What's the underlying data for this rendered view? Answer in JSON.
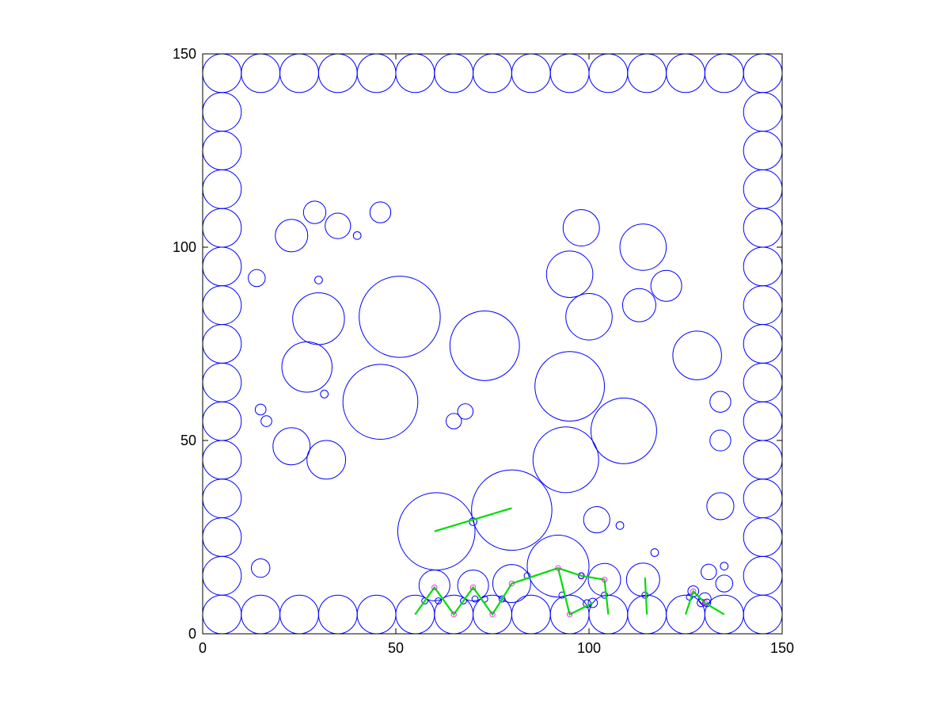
{
  "chart_data": {
    "type": "scatter",
    "title": "",
    "xlabel": "",
    "ylabel": "",
    "xlim": [
      0,
      150
    ],
    "ylim": [
      0,
      150
    ],
    "grid": false,
    "aspect": "equal",
    "xticks": [
      0,
      50,
      100,
      150
    ],
    "yticks": [
      0,
      50,
      100,
      150
    ],
    "colors": {
      "circle": "#0000ff",
      "path": "#00dd00",
      "contact": "#ff00ff",
      "axis": "#000000"
    },
    "circles": [
      [
        5,
        145,
        5
      ],
      [
        15,
        145,
        5
      ],
      [
        25,
        145,
        5
      ],
      [
        35,
        145,
        5
      ],
      [
        45,
        145,
        5
      ],
      [
        55,
        145,
        5
      ],
      [
        65,
        145,
        5
      ],
      [
        75,
        145,
        5
      ],
      [
        85,
        145,
        5
      ],
      [
        95,
        145,
        5
      ],
      [
        105,
        145,
        5
      ],
      [
        115,
        145,
        5
      ],
      [
        125,
        145,
        5
      ],
      [
        135,
        145,
        5
      ],
      [
        145,
        145,
        5
      ],
      [
        5,
        5,
        5
      ],
      [
        15,
        5,
        5
      ],
      [
        25,
        5,
        5
      ],
      [
        35,
        5,
        5
      ],
      [
        45,
        5,
        5
      ],
      [
        55,
        5,
        5
      ],
      [
        65,
        5,
        5
      ],
      [
        75,
        5,
        5
      ],
      [
        85,
        5,
        5
      ],
      [
        95,
        5,
        5
      ],
      [
        105,
        5,
        5
      ],
      [
        115,
        5,
        5
      ],
      [
        125,
        5,
        5
      ],
      [
        135,
        5,
        5
      ],
      [
        145,
        5,
        5
      ],
      [
        5,
        15,
        5
      ],
      [
        5,
        25,
        5
      ],
      [
        5,
        35,
        5
      ],
      [
        5,
        45,
        5
      ],
      [
        5,
        55,
        5
      ],
      [
        5,
        65,
        5
      ],
      [
        5,
        75,
        5
      ],
      [
        5,
        85,
        5
      ],
      [
        5,
        95,
        5
      ],
      [
        5,
        105,
        5
      ],
      [
        5,
        115,
        5
      ],
      [
        5,
        125,
        5
      ],
      [
        5,
        135,
        5
      ],
      [
        145,
        15,
        5
      ],
      [
        145,
        25,
        5
      ],
      [
        145,
        35,
        5
      ],
      [
        145,
        45,
        5
      ],
      [
        145,
        55,
        5
      ],
      [
        145,
        65,
        5
      ],
      [
        145,
        75,
        5
      ],
      [
        145,
        85,
        5
      ],
      [
        145,
        95,
        5
      ],
      [
        145,
        105,
        5
      ],
      [
        145,
        115,
        5
      ],
      [
        145,
        125,
        5
      ],
      [
        145,
        135,
        5
      ],
      [
        51,
        82,
        10.5
      ],
      [
        46,
        60,
        9.7
      ],
      [
        30,
        81.5,
        6.7
      ],
      [
        27,
        69,
        6.5
      ],
      [
        73,
        74.5,
        9
      ],
      [
        95,
        64,
        9
      ],
      [
        109,
        52.5,
        8.5
      ],
      [
        94,
        45,
        8.5
      ],
      [
        80,
        32,
        10.4
      ],
      [
        60.5,
        26.5,
        10
      ],
      [
        92,
        17.5,
        8
      ],
      [
        98,
        105,
        4.7
      ],
      [
        114,
        100,
        6
      ],
      [
        95,
        93,
        6
      ],
      [
        100,
        82,
        6
      ],
      [
        113,
        85,
        4.3
      ],
      [
        120,
        90,
        4
      ],
      [
        128,
        72,
        6.3
      ],
      [
        23,
        48.5,
        4.8
      ],
      [
        32,
        45,
        5
      ],
      [
        23,
        103,
        4.2
      ],
      [
        29,
        109,
        2.9
      ],
      [
        35,
        105.5,
        3.3
      ],
      [
        14,
        92,
        2.2
      ],
      [
        30,
        91.5,
        1
      ],
      [
        40,
        103,
        1
      ],
      [
        46,
        109,
        2.7
      ],
      [
        15,
        58,
        1.4
      ],
      [
        16.5,
        55,
        1.4
      ],
      [
        31.5,
        62,
        1
      ],
      [
        65,
        55,
        2
      ],
      [
        68,
        57.5,
        2
      ],
      [
        15,
        17,
        2.4
      ],
      [
        102,
        29.5,
        3.4
      ],
      [
        108,
        28,
        1
      ],
      [
        117,
        21,
        1
      ],
      [
        134,
        60,
        2.7
      ],
      [
        134,
        50,
        2.7
      ],
      [
        134,
        33,
        3.5
      ],
      [
        131,
        16,
        2
      ],
      [
        135,
        17.5,
        1
      ],
      [
        135,
        13,
        2.2
      ],
      [
        60,
        12.5,
        4
      ],
      [
        70,
        12.5,
        4
      ],
      [
        80,
        13,
        4.9
      ],
      [
        104,
        14,
        4.2
      ],
      [
        114,
        14,
        4.3
      ],
      [
        127,
        11,
        1.4
      ],
      [
        130,
        9,
        1.6
      ],
      [
        57.5,
        8.5,
        0.8
      ],
      [
        61,
        8.5,
        0.8
      ],
      [
        67.5,
        8.5,
        0.8
      ],
      [
        70,
        29,
        1
      ],
      [
        70.5,
        9,
        0.8
      ],
      [
        73,
        9,
        0.8
      ],
      [
        77.5,
        9,
        0.8
      ],
      [
        84,
        15,
        0.8
      ],
      [
        93,
        10,
        0.8
      ],
      [
        98,
        15,
        0.8
      ],
      [
        99.5,
        7.8,
        1
      ],
      [
        101,
        8,
        1.2
      ],
      [
        104,
        10,
        0.8
      ],
      [
        114.5,
        10,
        0.8
      ],
      [
        126,
        9.5,
        0.8
      ],
      [
        129,
        8,
        1
      ],
      [
        130.5,
        8,
        1
      ]
    ],
    "paths": [
      [
        [
          55,
          5
        ],
        [
          60,
          12
        ],
        [
          65,
          5
        ],
        [
          70,
          12
        ],
        [
          75,
          5
        ],
        [
          80,
          13
        ],
        [
          92,
          17
        ],
        [
          98,
          15
        ],
        [
          104,
          14
        ],
        [
          105,
          5
        ]
      ],
      [
        [
          92,
          17
        ],
        [
          95,
          5
        ],
        [
          101,
          8
        ]
      ],
      [
        [
          60,
          26.5
        ],
        [
          80,
          32.5
        ]
      ],
      [
        [
          114.5,
          14.5
        ],
        [
          115,
          5
        ]
      ],
      [
        [
          125,
          5
        ],
        [
          127,
          11
        ],
        [
          130,
          8
        ],
        [
          135,
          5
        ]
      ]
    ]
  }
}
